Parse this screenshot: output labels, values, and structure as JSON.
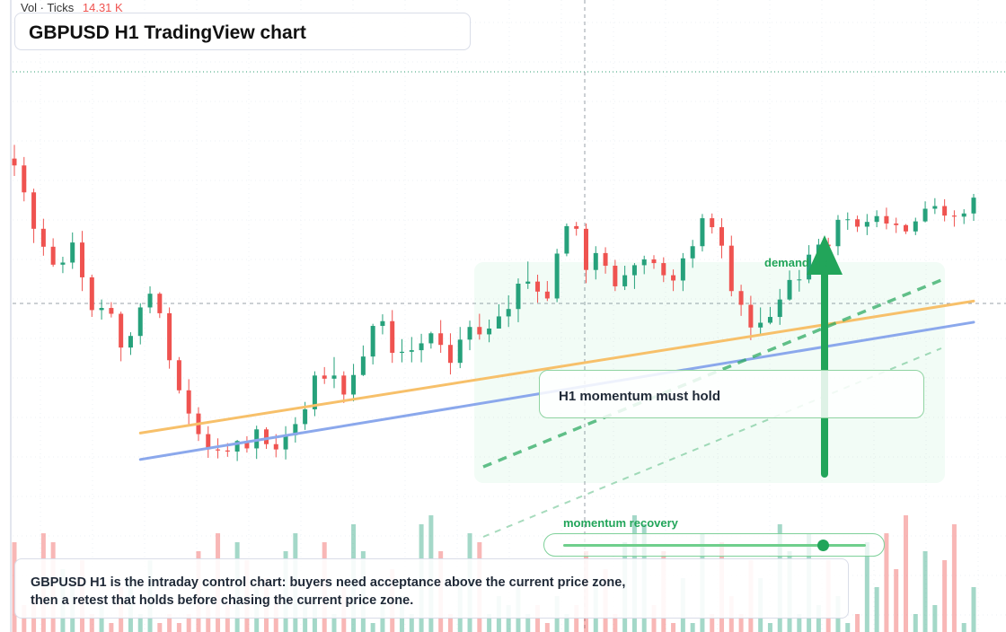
{
  "header": {
    "volume_label": "Vol · Ticks",
    "volume_value": "14.31 K"
  },
  "title": "GBPUSD H1 TradingView chart",
  "annotations": {
    "callout": "H1 momentum must hold",
    "demand_label": "demand side",
    "momentum_label": "momentum recovery",
    "note": "GBPUSD H1 is the intraday control chart: buyers need acceptance above the current price zone, then a retest that holds before chasing the current price zone."
  },
  "momentum_slider": {
    "value": 0.86
  },
  "colors": {
    "up": "#26a17b",
    "down": "#ef5350",
    "ma_orange": "#f7c06a",
    "ma_blue": "#8ba8ec",
    "accent_green": "#22a55a"
  },
  "chart_data": {
    "type": "candlestick",
    "symbol": "GBPUSD",
    "timeframe": "H1",
    "x_range": [
      0,
      99
    ],
    "ylim": [
      0,
      100
    ],
    "grid": true,
    "candles": [
      [
        0,
        72.0,
        70.7,
        74.6,
        68.7
      ],
      [
        1,
        70.7,
        65.6,
        72.3,
        63.9
      ],
      [
        2,
        65.6,
        58.7,
        66.3,
        56.0
      ],
      [
        3,
        58.7,
        55.3,
        60.6,
        53.6
      ],
      [
        4,
        55.3,
        51.9,
        56.9,
        51.5
      ],
      [
        5,
        51.9,
        52.3,
        53.4,
        50.3
      ],
      [
        6,
        52.3,
        56.1,
        58.0,
        51.1
      ],
      [
        7,
        56.1,
        49.5,
        58.3,
        46.9
      ],
      [
        8,
        49.5,
        43.3,
        50.0,
        42.0
      ],
      [
        9,
        43.3,
        43.7,
        45.3,
        41.5
      ],
      [
        10,
        43.7,
        42.6,
        44.8,
        41.9
      ],
      [
        11,
        42.6,
        36.2,
        43.0,
        33.6
      ],
      [
        12,
        36.2,
        38.4,
        39.1,
        34.8
      ],
      [
        13,
        38.4,
        43.8,
        44.6,
        36.8
      ],
      [
        14,
        43.8,
        46.4,
        47.8,
        42.7
      ],
      [
        15,
        46.4,
        42.7,
        46.7,
        41.8
      ],
      [
        16,
        42.7,
        33.8,
        43.8,
        32.2
      ],
      [
        17,
        33.8,
        28.1,
        34.4,
        27.5
      ],
      [
        18,
        28.1,
        23.7,
        30.2,
        21.3
      ],
      [
        19,
        23.7,
        19.8,
        24.9,
        18.5
      ],
      [
        20,
        19.8,
        16.9,
        21.3,
        15.3
      ],
      [
        21,
        16.9,
        16.7,
        19.0,
        15.2
      ],
      [
        22,
        16.7,
        16.5,
        18.1,
        15.5
      ],
      [
        23,
        16.5,
        18.5,
        18.7,
        14.7
      ],
      [
        24,
        18.5,
        17.1,
        19.4,
        16.3
      ],
      [
        25,
        17.1,
        20.7,
        21.4,
        15.1
      ],
      [
        26,
        20.7,
        17.9,
        21.1,
        17.0
      ],
      [
        27,
        17.9,
        16.9,
        19.8,
        15.4
      ],
      [
        28,
        16.9,
        19.6,
        21.3,
        15.0
      ],
      [
        29,
        19.6,
        21.7,
        23.0,
        18.2
      ],
      [
        30,
        21.7,
        24.5,
        25.9,
        20.6
      ],
      [
        31,
        24.5,
        30.9,
        31.7,
        23.2
      ],
      [
        32,
        30.9,
        30.3,
        32.5,
        29.3
      ],
      [
        33,
        30.3,
        30.9,
        34.4,
        28.5
      ],
      [
        34,
        30.9,
        27.3,
        31.7,
        25.7
      ],
      [
        35,
        27.3,
        31.0,
        33.1,
        26.0
      ],
      [
        36,
        31.0,
        34.5,
        36.6,
        30.8
      ],
      [
        37,
        34.5,
        40.3,
        40.7,
        33.0
      ],
      [
        38,
        40.3,
        41.2,
        42.5,
        38.7
      ],
      [
        39,
        41.2,
        35.2,
        43.3,
        33.3
      ],
      [
        40,
        35.2,
        35.4,
        37.8,
        33.4
      ],
      [
        41,
        35.4,
        35.7,
        38.2,
        33.4
      ],
      [
        42,
        35.7,
        37.0,
        38.8,
        33.4
      ],
      [
        43,
        37.0,
        38.9,
        39.2,
        36.0
      ],
      [
        44,
        38.9,
        36.7,
        41.4,
        35.2
      ],
      [
        45,
        36.7,
        33.3,
        38.9,
        31.1
      ],
      [
        46,
        33.3,
        37.7,
        40.1,
        32.3
      ],
      [
        47,
        37.7,
        40.1,
        41.3,
        35.7
      ],
      [
        48,
        40.1,
        38.7,
        42.6,
        37.7
      ],
      [
        49,
        38.7,
        39.8,
        41.5,
        37.2
      ],
      [
        50,
        39.8,
        42.1,
        44.4,
        40.6
      ],
      [
        51,
        42.1,
        43.5,
        46.1,
        40.1
      ],
      [
        52,
        43.5,
        48.3,
        49.3,
        41.0
      ],
      [
        53,
        48.3,
        48.7,
        52.5,
        47.3
      ],
      [
        54,
        48.7,
        46.8,
        50.0,
        44.7
      ],
      [
        55,
        46.8,
        45.5,
        48.8,
        45.0
      ],
      [
        56,
        45.5,
        54.0,
        54.9,
        44.8
      ],
      [
        57,
        54.0,
        59.2,
        59.7,
        53.5
      ],
      [
        58,
        59.2,
        58.7,
        60.0,
        57.4
      ],
      [
        59,
        58.7,
        50.9,
        59.7,
        48.4
      ],
      [
        60,
        50.9,
        54.1,
        55.4,
        49.1
      ],
      [
        61,
        54.1,
        51.7,
        55.2,
        50.2
      ],
      [
        62,
        51.7,
        47.8,
        52.8,
        46.9
      ],
      [
        63,
        47.8,
        49.9,
        51.7,
        47.1
      ],
      [
        64,
        49.9,
        51.8,
        52.2,
        47.3
      ],
      [
        65,
        51.8,
        52.9,
        53.6,
        50.1
      ],
      [
        66,
        52.9,
        52.2,
        53.7,
        51.1
      ],
      [
        67,
        52.2,
        49.9,
        53.3,
        48.6
      ],
      [
        68,
        49.9,
        48.9,
        51.0,
        46.9
      ],
      [
        69,
        48.9,
        53.1,
        54.1,
        46.9
      ],
      [
        70,
        53.1,
        55.4,
        56.6,
        51.3
      ],
      [
        71,
        55.4,
        60.7,
        61.5,
        54.4
      ],
      [
        72,
        60.7,
        59.0,
        61.6,
        57.8
      ],
      [
        73,
        59.0,
        55.5,
        60.7,
        53.1
      ],
      [
        74,
        55.5,
        46.9,
        57.4,
        45.9
      ],
      [
        75,
        46.9,
        44.3,
        48.1,
        42.2
      ],
      [
        76,
        44.3,
        40.0,
        46.0,
        37.6
      ],
      [
        77,
        40.0,
        40.9,
        43.8,
        38.8
      ],
      [
        78,
        40.9,
        42.0,
        43.9,
        40.6
      ],
      [
        79,
        42.0,
        45.3,
        47.3,
        40.5
      ],
      [
        80,
        45.3,
        49.0,
        50.8,
        45.1
      ],
      [
        81,
        49.0,
        49.1,
        50.9,
        46.8
      ],
      [
        82,
        49.1,
        53.8,
        55.6,
        48.4
      ],
      [
        83,
        53.8,
        55.7,
        56.8,
        53.0
      ],
      [
        84,
        55.7,
        55.4,
        57.0,
        54.9
      ],
      [
        85,
        55.4,
        60.4,
        61.3,
        53.7
      ],
      [
        86,
        60.4,
        60.5,
        61.8,
        58.5
      ],
      [
        87,
        60.5,
        59.1,
        61.2,
        58.1
      ],
      [
        88,
        59.1,
        60.0,
        61.5,
        57.5
      ],
      [
        89,
        60.0,
        61.1,
        62.2,
        59.0
      ],
      [
        90,
        61.1,
        59.7,
        62.7,
        58.6
      ],
      [
        91,
        59.7,
        59.4,
        60.8,
        57.9
      ],
      [
        92,
        59.4,
        58.2,
        59.6,
        57.7
      ],
      [
        93,
        58.2,
        60.1,
        60.8,
        57.5
      ],
      [
        94,
        60.1,
        62.5,
        63.9,
        59.9
      ],
      [
        95,
        62.5,
        63.0,
        64.5,
        61.5
      ],
      [
        96,
        63.0,
        61.2,
        64.3,
        60.1
      ],
      [
        97,
        61.2,
        61.0,
        62.2,
        59.1
      ],
      [
        98,
        61.0,
        61.6,
        62.4,
        59.6
      ],
      [
        99,
        61.6,
        64.6,
        65.3,
        60.2
      ]
    ],
    "volume": [
      10,
      3,
      4,
      11,
      10,
      7,
      6,
      8,
      2,
      3,
      1,
      5,
      6,
      2,
      8,
      1,
      2,
      1,
      2,
      9,
      3,
      11,
      3,
      10,
      8,
      5,
      6,
      4,
      9,
      11,
      4,
      4,
      10,
      2,
      5,
      12,
      9,
      1,
      4,
      7,
      4,
      2,
      12,
      13,
      9,
      2,
      6,
      11,
      10,
      2,
      4,
      3,
      5,
      2,
      3,
      1,
      4,
      2,
      3,
      9,
      6,
      7,
      2,
      10,
      13,
      12,
      3,
      9,
      1,
      6,
      1,
      11,
      2,
      10,
      4,
      2,
      8,
      6,
      1,
      12,
      9,
      2,
      11,
      3,
      8,
      4,
      1,
      2,
      10,
      5,
      11,
      7,
      13,
      2,
      9,
      3,
      8,
      12,
      1,
      5
    ],
    "moving_averages": [
      {
        "color": "orange",
        "from": [
          13,
          20
        ],
        "to": [
          99,
          45
        ]
      },
      {
        "color": "blue",
        "from": [
          13,
          15
        ],
        "to": [
          99,
          41
        ]
      }
    ]
  }
}
